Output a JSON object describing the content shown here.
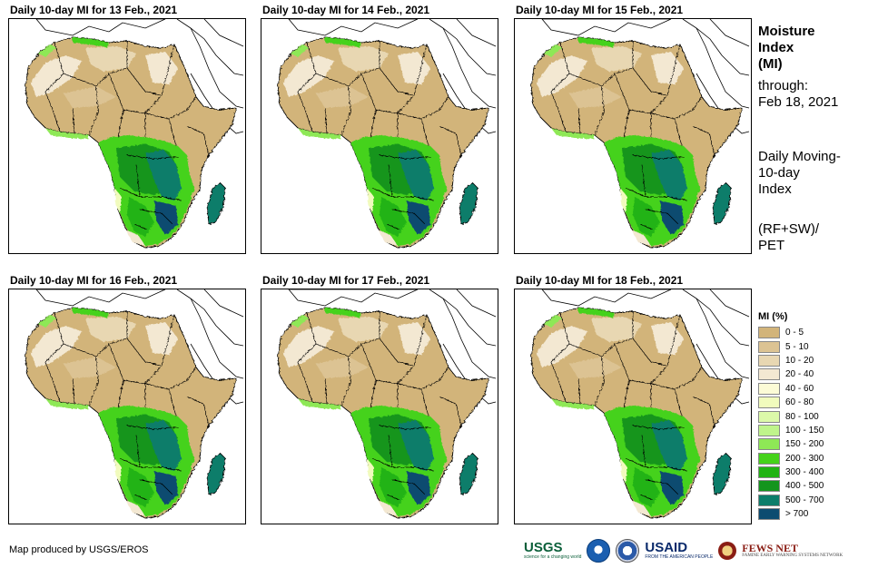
{
  "panels": [
    {
      "title": "Daily 10-day MI for 13 Feb., 2021"
    },
    {
      "title": "Daily 10-day MI for 14 Feb., 2021"
    },
    {
      "title": "Daily 10-day MI for 15 Feb., 2021"
    },
    {
      "title": "Daily 10-day MI for 16 Feb., 2021"
    },
    {
      "title": "Daily 10-day MI for 17 Feb., 2021"
    },
    {
      "title": "Daily 10-day MI for 18 Feb., 2021"
    }
  ],
  "side": {
    "title_line1": "Moisture",
    "title_line2": "Index",
    "title_line3": "(MI)",
    "through_label": "through:",
    "through_date": "Feb 18, 2021",
    "desc_line1": "Daily Moving-",
    "desc_line2": "10-day",
    "desc_line3": "Index",
    "formula_line1": "(RF+SW)/",
    "formula_line2": "PET"
  },
  "legend": {
    "title": "MI (%)",
    "items": [
      {
        "label": "0 - 5",
        "color": "#d2b47a"
      },
      {
        "label": "5 - 10",
        "color": "#dcc393"
      },
      {
        "label": "10 - 20",
        "color": "#e8d7b2"
      },
      {
        "label": "20 - 40",
        "color": "#f3e8d2"
      },
      {
        "label": "40 - 60",
        "color": "#fcfbd6"
      },
      {
        "label": "60 - 80",
        "color": "#f1fbbd"
      },
      {
        "label": "80 - 100",
        "color": "#dcf9a9"
      },
      {
        "label": "100 - 150",
        "color": "#bff48b"
      },
      {
        "label": "150 - 200",
        "color": "#8ee856"
      },
      {
        "label": "200 - 300",
        "color": "#44d21a"
      },
      {
        "label": "300 - 400",
        "color": "#20b313"
      },
      {
        "label": "400 - 500",
        "color": "#14951d"
      },
      {
        "label": "500 - 700",
        "color": "#0c7d6a"
      },
      {
        "label": "> 700",
        "color": "#0c4c70"
      }
    ]
  },
  "credit": "Map produced by USGS/EROS",
  "logos": {
    "usgs": "USGS",
    "usgs_tagline": "science for a changing world",
    "usaid": "USAID",
    "usaid_tagline": "FROM THE AMERICAN PEOPLE",
    "fews": "FEWS NET",
    "fews_tagline": "FAMINE EARLY WARNING SYSTEMS NETWORK"
  }
}
